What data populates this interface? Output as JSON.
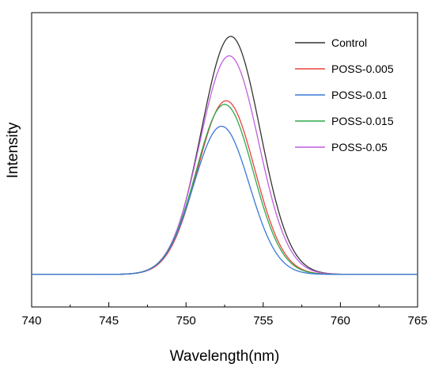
{
  "chart_data": {
    "type": "line",
    "title": "",
    "xlabel": "Wavelength(nm)",
    "ylabel": "Intensity",
    "xlim": [
      740,
      765
    ],
    "ylim": [
      0,
      1.0
    ],
    "xticks": [
      "740",
      "745",
      "750",
      "755",
      "760",
      "765"
    ],
    "yticks_shown": false,
    "grid": false,
    "legend_position": "top-right",
    "baseline": 0.02,
    "series": [
      {
        "name": "Control",
        "color": "#333333",
        "peak_x": 752.9,
        "peak_y": 1.0,
        "sigma": 1.9
      },
      {
        "name": "POSS-0.005",
        "color": "#e8433f",
        "peak_x": 752.6,
        "peak_y": 0.735,
        "sigma": 1.85
      },
      {
        "name": "POSS-0.01",
        "color": "#3a78d8",
        "peak_x": 752.3,
        "peak_y": 0.63,
        "sigma": 1.8
      },
      {
        "name": "POSS-0.015",
        "color": "#2ea84b",
        "peak_x": 752.5,
        "peak_y": 0.72,
        "sigma": 1.85
      },
      {
        "name": "POSS-0.05",
        "color": "#c25ee0",
        "peak_x": 752.8,
        "peak_y": 0.92,
        "sigma": 1.9
      }
    ]
  }
}
